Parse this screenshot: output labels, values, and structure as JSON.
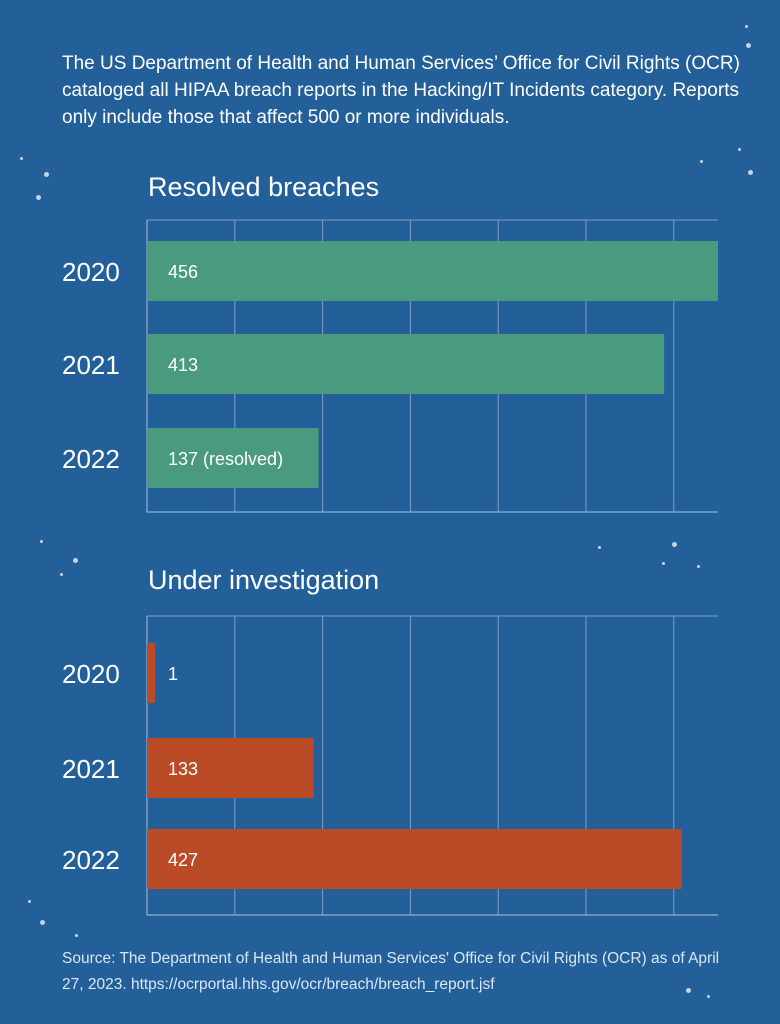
{
  "intro": "The US Department of Health and Human Services’ Office for Civil Rights (OCR) cataloged all HIPAA breach reports in the Hacking/IT Incidents category. Reports only include those that affect 500 or more individuals.",
  "chart_data": [
    {
      "type": "bar",
      "orientation": "horizontal",
      "title": "Resolved breaches",
      "categories": [
        "2020",
        "2021",
        "2022"
      ],
      "values": [
        456,
        413,
        137
      ],
      "data_labels": [
        "456",
        "413",
        "137 (resolved)"
      ],
      "xlim": [
        0,
        456
      ],
      "grid": true,
      "color": "#4a9b7e"
    },
    {
      "type": "bar",
      "orientation": "horizontal",
      "title": "Under investigation",
      "categories": [
        "2020",
        "2021",
        "2022"
      ],
      "values": [
        1,
        133,
        427
      ],
      "data_labels": [
        "1",
        "133",
        "427"
      ],
      "xlim": [
        0,
        456
      ],
      "grid": true,
      "color": "#bb4b27"
    }
  ],
  "source": "Source: The Department of Health and Human Services' Office for Civil Rights (OCR) as of April 27, 2023. https://ocrportal.hhs.gov/ocr/breach/breach_report.jsf",
  "colors": {
    "background": "#23609a",
    "gridline": "#7f9fc4"
  }
}
